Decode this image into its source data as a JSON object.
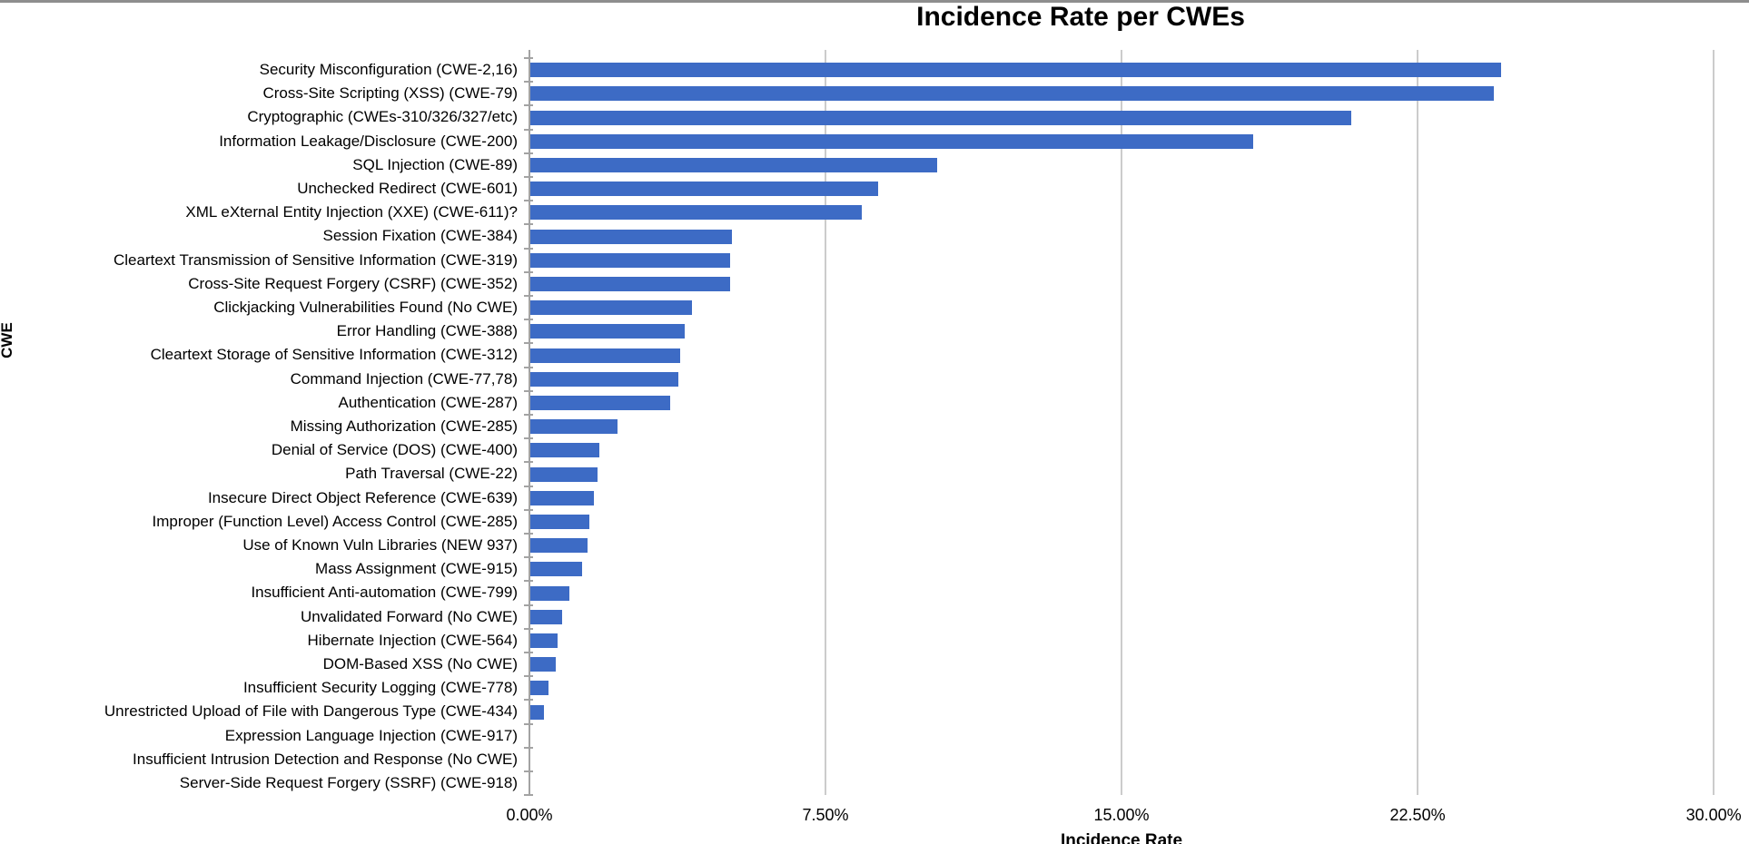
{
  "page": {
    "background": "#FFFFFF",
    "top_border_color": "#8E8E8E"
  },
  "chart_data": {
    "type": "bar",
    "orientation": "horizontal",
    "title": "Incidence Rate per CWEs",
    "xlabel": "Incidence Rate",
    "ylabel": "CWE",
    "xlim": [
      0,
      30
    ],
    "x_tick_values": [
      0,
      7.5,
      15,
      22.5,
      30
    ],
    "x_tick_labels": [
      "0.00%",
      "7.50%",
      "15.00%",
      "22.50%",
      "30.00%"
    ],
    "grid": true,
    "legend_position": "none",
    "bar_color": "#3D6BC5",
    "gridline_color": "#CCCCCC",
    "axis_color": "#A3A3A3",
    "categories": [
      "Security Misconfiguration (CWE-2,16)",
      "Cross-Site Scripting (XSS) (CWE-79)",
      "Cryptographic (CWEs-310/326/327/etc)",
      "Information Leakage/Disclosure (CWE-200)",
      "SQL Injection (CWE-89)",
      "Unchecked Redirect (CWE-601)",
      "XML eXternal Entity Injection (XXE) (CWE-611)?",
      "Session Fixation (CWE-384)",
      "Cleartext Transmission of Sensitive Information (CWE-319)",
      "Cross-Site Request Forgery (CSRF) (CWE-352)",
      "Clickjacking Vulnerabilities Found (No CWE)",
      "Error Handling (CWE-388)",
      "Cleartext Storage of Sensitive Information (CWE-312)",
      "Command Injection (CWE-77,78)",
      "Authentication (CWE-287)",
      "Missing Authorization (CWE-285)",
      "Denial of Service (DOS) (CWE-400)",
      "Path Traversal (CWE-22)",
      "Insecure Direct Object Reference (CWE-639)",
      "Improper (Function Level) Access Control (CWE-285)",
      "Use of Known Vuln Libraries (NEW 937)",
      "Mass Assignment (CWE-915)",
      "Insufficient Anti-automation (CWE-799)",
      "Unvalidated Forward (No CWE)",
      "Hibernate Injection (CWE-564)",
      "DOM-Based XSS (No CWE)",
      "Insufficient Security Logging (CWE-778)",
      "Unrestricted Upload of File with Dangerous Type (CWE-434)",
      "Expression Language Injection (CWE-917)",
      "Insufficient Intrusion Detection and Response (No CWE)",
      "Server-Side Request Forgery (SSRF) (CWE-918)"
    ],
    "values": [
      24.6,
      24.4,
      20.8,
      18.3,
      10.3,
      8.8,
      8.4,
      5.1,
      5.05,
      5.05,
      4.1,
      3.9,
      3.8,
      3.75,
      3.55,
      2.2,
      1.75,
      1.7,
      1.6,
      1.5,
      1.45,
      1.3,
      1.0,
      0.8,
      0.7,
      0.65,
      0.45,
      0.35,
      0,
      0,
      0
    ]
  }
}
